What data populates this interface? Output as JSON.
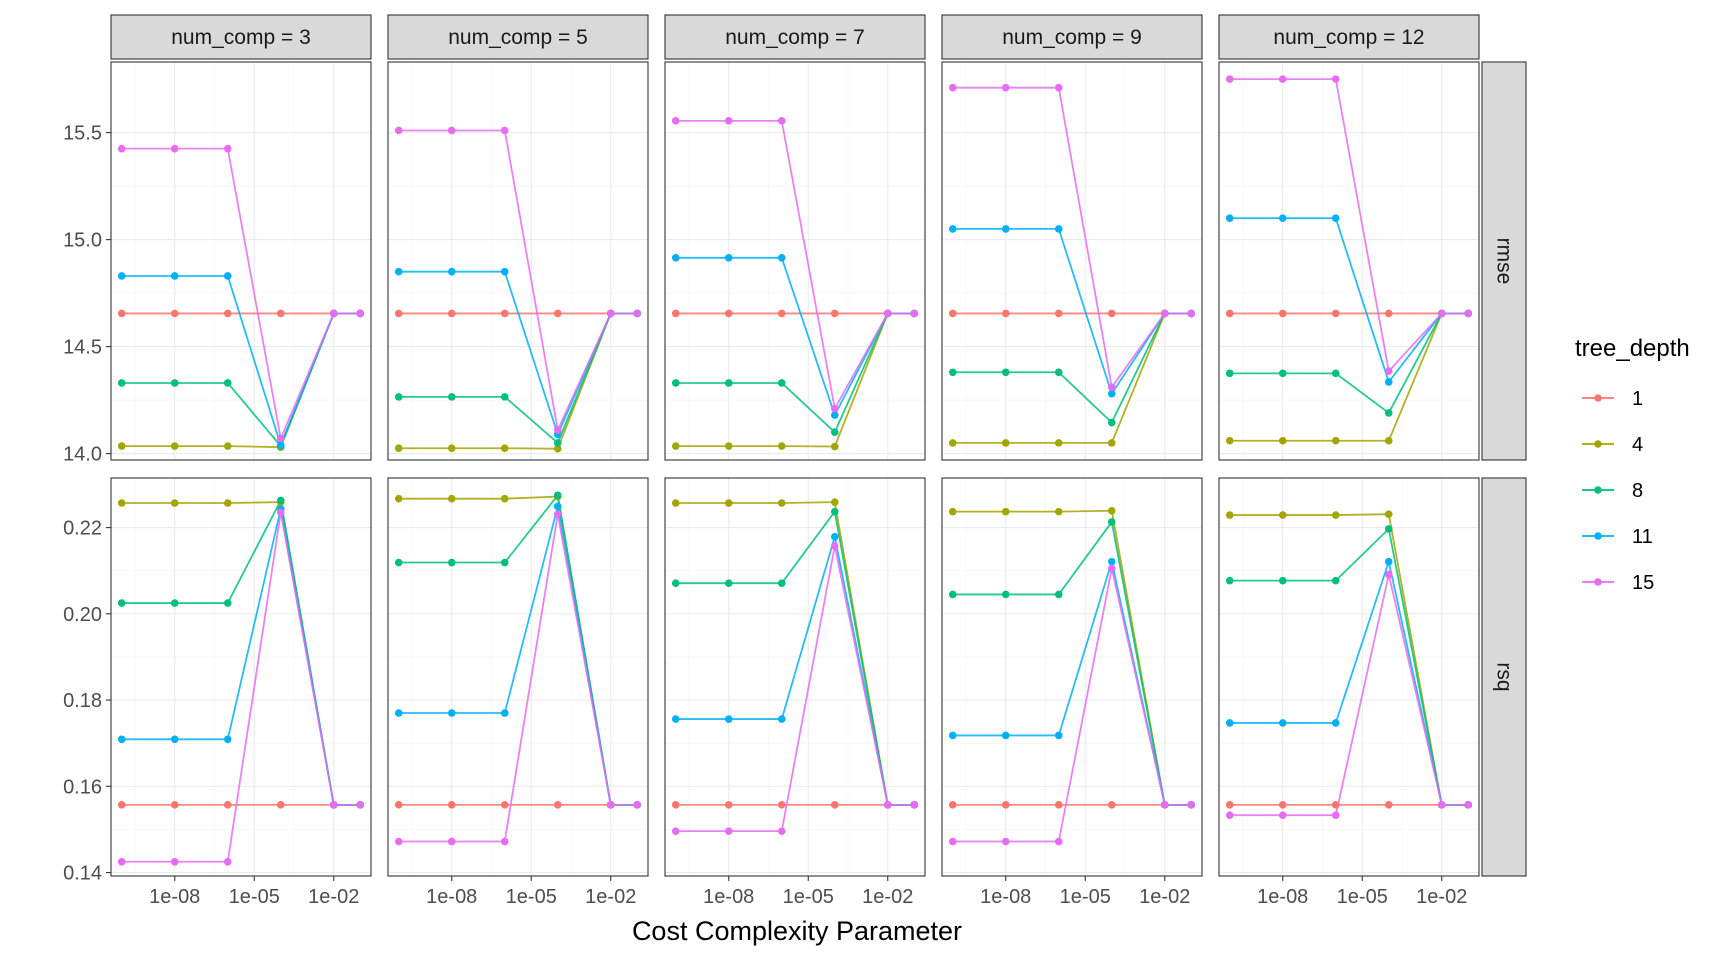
{
  "chart_data": {
    "type": "line",
    "xlabel": "Cost Complexity Parameter",
    "x_scale": "log10",
    "x": [
      1e-10,
      1e-08,
      1e-06,
      0.0001,
      0.01,
      0.1
    ],
    "x_ticks": [
      1e-08,
      1e-05,
      0.01
    ],
    "x_tick_labels": [
      "1e-08",
      "1e-05",
      "1e-02"
    ],
    "columns": [
      {
        "label": "num_comp = 3"
      },
      {
        "label": "num_comp = 5"
      },
      {
        "label": "num_comp = 7"
      },
      {
        "label": "num_comp = 9"
      },
      {
        "label": "num_comp = 12"
      }
    ],
    "rows": [
      {
        "label": "rmse",
        "ylim": [
          13.97,
          15.83
        ],
        "ticks": [
          14.0,
          14.5,
          15.0,
          15.5
        ],
        "tick_labels": [
          "14.0",
          "14.5",
          "15.0",
          "15.5"
        ]
      },
      {
        "label": "rsq",
        "ylim": [
          0.1392,
          0.2315
        ],
        "ticks": [
          0.14,
          0.16,
          0.18,
          0.2,
          0.22
        ],
        "tick_labels": [
          "0.14",
          "0.16",
          "0.18",
          "0.20",
          "0.22"
        ]
      }
    ],
    "legend": {
      "title": "tree_depth",
      "position": "right"
    },
    "series": [
      {
        "name": "1",
        "color": "#F8766D"
      },
      {
        "name": "4",
        "color": "#A3A500"
      },
      {
        "name": "8",
        "color": "#00BF7D"
      },
      {
        "name": "11",
        "color": "#00B0F6"
      },
      {
        "name": "15",
        "color": "#E76BF3"
      }
    ],
    "grid": true,
    "panels": [
      [
        {
          "1": [
            14.655,
            14.655,
            14.655,
            14.655,
            14.655,
            14.655
          ],
          "4": [
            14.035,
            14.035,
            14.035,
            14.03,
            14.655,
            14.655
          ],
          "8": [
            14.33,
            14.33,
            14.33,
            14.035,
            14.655,
            14.655
          ],
          "11": [
            14.83,
            14.83,
            14.83,
            14.04,
            14.655,
            14.655
          ],
          "15": [
            15.425,
            15.425,
            15.425,
            14.07,
            14.655,
            14.655
          ]
        },
        {
          "1": [
            14.655,
            14.655,
            14.655,
            14.655,
            14.655,
            14.655
          ],
          "4": [
            14.025,
            14.025,
            14.025,
            14.023,
            14.655,
            14.655
          ],
          "8": [
            14.265,
            14.265,
            14.265,
            14.05,
            14.655,
            14.655
          ],
          "11": [
            14.85,
            14.85,
            14.85,
            14.09,
            14.655,
            14.655
          ],
          "15": [
            15.51,
            15.51,
            15.51,
            14.11,
            14.655,
            14.655
          ]
        },
        {
          "1": [
            14.655,
            14.655,
            14.655,
            14.655,
            14.655,
            14.655
          ],
          "4": [
            14.035,
            14.035,
            14.035,
            14.033,
            14.655,
            14.655
          ],
          "8": [
            14.33,
            14.33,
            14.33,
            14.1,
            14.655,
            14.655
          ],
          "11": [
            14.915,
            14.915,
            14.915,
            14.18,
            14.655,
            14.655
          ],
          "15": [
            15.555,
            15.555,
            15.555,
            14.21,
            14.655,
            14.655
          ]
        },
        {
          "1": [
            14.655,
            14.655,
            14.655,
            14.655,
            14.655,
            14.655
          ],
          "4": [
            14.05,
            14.05,
            14.05,
            14.05,
            14.655,
            14.655
          ],
          "8": [
            14.38,
            14.38,
            14.38,
            14.145,
            14.655,
            14.655
          ],
          "11": [
            15.05,
            15.05,
            15.05,
            14.28,
            14.655,
            14.655
          ],
          "15": [
            15.71,
            15.71,
            15.71,
            14.31,
            14.655,
            14.655
          ]
        },
        {
          "1": [
            14.655,
            14.655,
            14.655,
            14.655,
            14.655,
            14.655
          ],
          "4": [
            14.06,
            14.06,
            14.06,
            14.06,
            14.655,
            14.655
          ],
          "8": [
            14.375,
            14.375,
            14.375,
            14.19,
            14.655,
            14.655
          ],
          "11": [
            15.1,
            15.1,
            15.1,
            14.335,
            14.655,
            14.655
          ],
          "15": [
            15.75,
            15.75,
            15.75,
            14.385,
            14.655,
            14.655
          ]
        }
      ],
      [
        {
          "1": [
            0.1557,
            0.1557,
            0.1557,
            0.1557,
            0.1557,
            0.1557
          ],
          "4": [
            0.2257,
            0.2257,
            0.2257,
            0.2259,
            0.1557,
            0.1557
          ],
          "8": [
            0.2025,
            0.2025,
            0.2025,
            0.2263,
            0.1557,
            0.1557
          ],
          "11": [
            0.1709,
            0.1709,
            0.1709,
            0.2243,
            0.1557,
            0.1557
          ],
          "15": [
            0.1425,
            0.1425,
            0.1425,
            0.2235,
            0.1557,
            0.1557
          ]
        },
        {
          "1": [
            0.1557,
            0.1557,
            0.1557,
            0.1557,
            0.1557,
            0.1557
          ],
          "4": [
            0.2267,
            0.2267,
            0.2267,
            0.2272,
            0.1557,
            0.1557
          ],
          "8": [
            0.2119,
            0.2119,
            0.2119,
            0.2275,
            0.1557,
            0.1557
          ],
          "11": [
            0.177,
            0.177,
            0.177,
            0.2249,
            0.1557,
            0.1557
          ],
          "15": [
            0.1472,
            0.1472,
            0.1472,
            0.2231,
            0.1557,
            0.1557
          ]
        },
        {
          "1": [
            0.1557,
            0.1557,
            0.1557,
            0.1557,
            0.1557,
            0.1557
          ],
          "4": [
            0.2257,
            0.2257,
            0.2257,
            0.2259,
            0.1557,
            0.1557
          ],
          "8": [
            0.2071,
            0.2071,
            0.2071,
            0.2237,
            0.1557,
            0.1557
          ],
          "11": [
            0.1756,
            0.1756,
            0.1756,
            0.2179,
            0.1557,
            0.1557
          ],
          "15": [
            0.1496,
            0.1496,
            0.1496,
            0.2157,
            0.1557,
            0.1557
          ]
        },
        {
          "1": [
            0.1557,
            0.1557,
            0.1557,
            0.1557,
            0.1557,
            0.1557
          ],
          "4": [
            0.2237,
            0.2237,
            0.2237,
            0.2239,
            0.1557,
            0.1557
          ],
          "8": [
            0.2045,
            0.2045,
            0.2045,
            0.2213,
            0.1557,
            0.1557
          ],
          "11": [
            0.1718,
            0.1718,
            0.1718,
            0.2121,
            0.1557,
            0.1557
          ],
          "15": [
            0.1472,
            0.1472,
            0.1472,
            0.2105,
            0.1557,
            0.1557
          ]
        },
        {
          "1": [
            0.1557,
            0.1557,
            0.1557,
            0.1557,
            0.1557,
            0.1557
          ],
          "4": [
            0.2229,
            0.2229,
            0.2229,
            0.2231,
            0.1557,
            0.1557
          ],
          "8": [
            0.2077,
            0.2077,
            0.2077,
            0.2197,
            0.1557,
            0.1557
          ],
          "11": [
            0.1747,
            0.1747,
            0.1747,
            0.2121,
            0.1557,
            0.1557
          ],
          "15": [
            0.1533,
            0.1533,
            0.1533,
            0.2091,
            0.1557,
            0.1557
          ]
        }
      ]
    ]
  }
}
